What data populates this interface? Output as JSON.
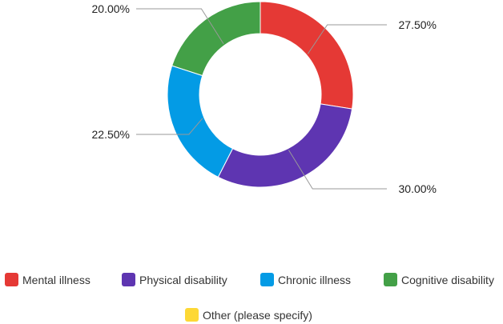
{
  "chart_data": {
    "type": "pie",
    "variant": "donut",
    "categories": [
      "Mental illness",
      "Physical disability",
      "Chronic illness",
      "Cognitive disability",
      "Other (please specify)"
    ],
    "values": [
      27.5,
      30.0,
      22.5,
      20.0,
      0.0
    ],
    "value_labels": [
      "27.50%",
      "30.00%",
      "22.50%",
      "20.00%",
      ""
    ],
    "colors": [
      "#e53935",
      "#5e35b1",
      "#039be5",
      "#43a047",
      "#fdd835"
    ],
    "legend_position": "bottom",
    "title": ""
  }
}
